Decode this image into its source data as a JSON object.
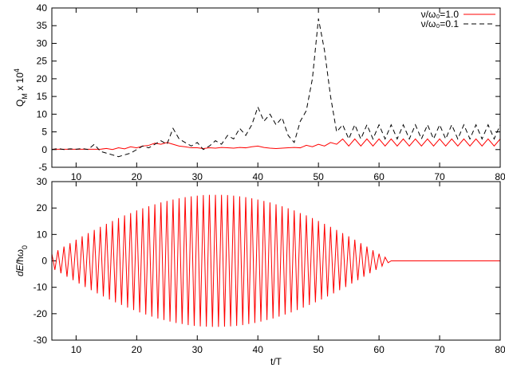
{
  "chart_data": [
    {
      "type": "line",
      "ylabel": {
        "base": "Q",
        "sub": "M",
        "tail": " x 10",
        "sup": "4"
      },
      "xlim": [
        6,
        80
      ],
      "xticks": [
        10,
        20,
        30,
        40,
        50,
        60,
        70,
        80
      ],
      "ylim": [
        -5,
        40
      ],
      "yticks": [
        -5,
        0,
        5,
        10,
        15,
        20,
        25,
        30,
        35,
        40
      ],
      "legend": "top-right",
      "x": [
        6,
        7,
        8,
        9,
        10,
        11,
        12,
        13,
        14,
        15,
        16,
        17,
        18,
        19,
        20,
        21,
        22,
        23,
        24,
        25,
        26,
        27,
        28,
        29,
        30,
        31,
        32,
        33,
        34,
        35,
        36,
        37,
        38,
        39,
        40,
        41,
        42,
        43,
        44,
        45,
        46,
        47,
        48,
        49,
        50,
        51,
        52,
        53,
        54,
        55,
        56,
        57,
        58,
        59,
        60,
        61,
        62,
        63,
        64,
        65,
        66,
        67,
        68,
        69,
        70,
        71,
        72,
        73,
        74,
        75,
        76,
        77,
        78,
        79,
        80
      ],
      "series": [
        {
          "name": "ν/ω₀=1.0",
          "color": "#ff0000",
          "dash": "none",
          "values": [
            0.1,
            0.1,
            0.1,
            0.1,
            0.1,
            0.1,
            0.1,
            0.1,
            0.1,
            0.3,
            0,
            0.5,
            0.2,
            0.8,
            0.5,
            1,
            1.2,
            1.8,
            1.5,
            2,
            1.5,
            1,
            0.8,
            0.5,
            0.5,
            0.3,
            0.5,
            0.4,
            0.6,
            0.5,
            0.4,
            0.6,
            0.5,
            0.8,
            1,
            0.6,
            0.4,
            0.3,
            0.4,
            0.5,
            0.6,
            0.5,
            1.2,
            0.8,
            1.5,
            1,
            2,
            1.5,
            3,
            1,
            3,
            1,
            3,
            1,
            3,
            1,
            3,
            1,
            3,
            1,
            3,
            1,
            3,
            1,
            3,
            1,
            3,
            1,
            3,
            1,
            3,
            1,
            3,
            1,
            3
          ]
        },
        {
          "name": "ν/ω₀=0.1",
          "color": "#000000",
          "dash": "6,4",
          "values": [
            0,
            0.3,
            0,
            0.2,
            0.1,
            0.3,
            0,
            1.5,
            -0.5,
            -1,
            -1.5,
            -2,
            -1.5,
            -1,
            0,
            1,
            0.5,
            1.5,
            2.5,
            1.5,
            6,
            3,
            2,
            1,
            2,
            0,
            1,
            2.5,
            1.5,
            4,
            3,
            6,
            4,
            7,
            12,
            8,
            10,
            7,
            9,
            4,
            2,
            8,
            11,
            20,
            37,
            28,
            15,
            5,
            7,
            3,
            7,
            3,
            7,
            3,
            7,
            3,
            7,
            3,
            7,
            3,
            7,
            3,
            7,
            3,
            7,
            3,
            7,
            3,
            7,
            3,
            7,
            3,
            7,
            3,
            7
          ]
        }
      ]
    },
    {
      "type": "line",
      "ylabel": {
        "italic": "dE",
        "text": "/ħω",
        "sub": "0"
      },
      "xlabel": "t/T",
      "xlim": [
        6,
        80
      ],
      "xticks": [
        10,
        20,
        30,
        40,
        50,
        60,
        70,
        80
      ],
      "ylim": [
        -30,
        30
      ],
      "yticks": [
        -30,
        -20,
        -10,
        0,
        10,
        20,
        30
      ],
      "x": [
        6,
        6.5,
        7,
        7.5,
        8,
        8.5,
        9,
        9.5,
        10,
        10.5,
        11,
        11.5,
        12,
        12.5,
        13,
        13.5,
        14,
        14.5,
        15,
        15.5,
        16,
        16.5,
        17,
        17.5,
        18,
        18.5,
        19,
        19.5,
        20,
        20.5,
        21,
        21.5,
        22,
        22.5,
        23,
        23.5,
        24,
        24.5,
        25,
        25.5,
        26,
        26.5,
        27,
        27.5,
        28,
        28.5,
        29,
        29.5,
        30,
        30.5,
        31,
        31.5,
        32,
        32.5,
        33,
        33.5,
        34,
        34.5,
        35,
        35.5,
        36,
        36.5,
        37,
        37.5,
        38,
        38.5,
        39,
        39.5,
        40,
        40.5,
        41,
        41.5,
        42,
        42.5,
        43,
        43.5,
        44,
        44.5,
        45,
        45.5,
        46,
        46.5,
        47,
        47.5,
        48,
        48.5,
        49,
        49.5,
        50,
        50.5,
        51,
        51.5,
        52,
        52.5,
        53,
        53.5,
        54,
        54.5,
        55,
        55.5,
        56,
        56.5,
        57,
        57.5,
        58,
        58.5,
        59,
        59.5,
        60,
        60.5,
        61,
        61.5,
        62,
        80
      ],
      "series": [
        {
          "color": "#ff0000",
          "dash": "none",
          "values": [
            2.7,
            -3.4,
            4.0,
            -4.7,
            5.4,
            -6.0,
            6.7,
            -7.3,
            8.0,
            -8.6,
            9.3,
            -9.9,
            10.5,
            -11.1,
            11.7,
            -12.3,
            12.9,
            -13.5,
            14.0,
            -14.6,
            15.1,
            -15.7,
            16.2,
            -16.7,
            17.2,
            -17.7,
            18.1,
            -18.6,
            19.1,
            -19.5,
            19.9,
            -20.3,
            20.7,
            -21.1,
            21.4,
            -21.8,
            22.1,
            -22.4,
            22.7,
            -23.0,
            23.2,
            -23.5,
            23.7,
            -23.9,
            24.1,
            -24.3,
            24.4,
            -24.6,
            24.7,
            -24.8,
            24.9,
            -24.9,
            25.0,
            -25.0,
            25.0,
            -25.0,
            25.0,
            -24.9,
            24.9,
            -24.8,
            24.7,
            -24.6,
            24.4,
            -24.3,
            24.1,
            -23.9,
            23.7,
            -23.5,
            23.2,
            -23.0,
            22.7,
            -22.4,
            22.1,
            -21.8,
            21.4,
            -21.1,
            20.7,
            -20.3,
            19.9,
            -19.5,
            19.1,
            -18.6,
            18.1,
            -17.7,
            17.2,
            -16.7,
            16.2,
            -15.7,
            15.1,
            -14.6,
            14.0,
            -13.5,
            12.9,
            -12.3,
            11.7,
            -11.1,
            10.5,
            -9.9,
            9.3,
            -8.6,
            8.0,
            -7.3,
            6.7,
            -6.0,
            5.4,
            -4.7,
            4.0,
            -3.4,
            2.7,
            -2.0,
            1.4,
            -0.7,
            0,
            0
          ]
        }
      ]
    }
  ]
}
